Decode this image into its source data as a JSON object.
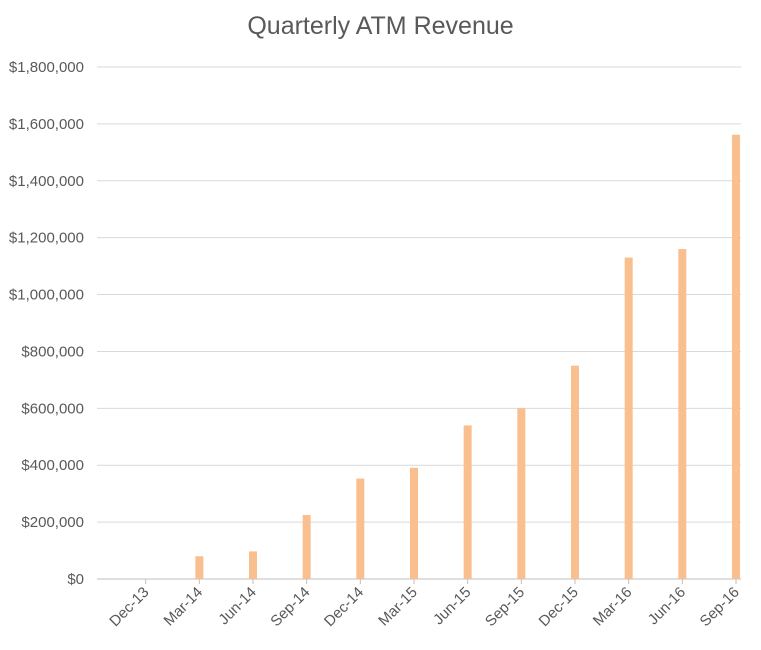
{
  "chart_data": {
    "type": "bar",
    "title": "Quarterly ATM Revenue",
    "xlabel": "",
    "ylabel": "",
    "categories": [
      "Dec-13",
      "Mar-14",
      "Jun-14",
      "Sep-14",
      "Dec-14",
      "Mar-15",
      "Jun-15",
      "Sep-15",
      "Dec-15",
      "Mar-16",
      "Jun-16",
      "Sep-16"
    ],
    "values": [
      0,
      80000,
      97000,
      225000,
      353000,
      391000,
      540000,
      600000,
      750000,
      1130000,
      1160000,
      1562000
    ],
    "ylim": [
      0,
      1800000
    ],
    "yticks": [
      0,
      200000,
      400000,
      600000,
      800000,
      1000000,
      1200000,
      1400000,
      1600000,
      1800000
    ],
    "ytick_labels": [
      "$0",
      "$200,000",
      "$400,000",
      "$600,000",
      "$800,000",
      "$1,000,000",
      "$1,200,000",
      "$1,400,000",
      "$1,600,000",
      "$1,800,000"
    ],
    "grid": true,
    "legend": "none",
    "bar_color": "#f9bf8f"
  }
}
